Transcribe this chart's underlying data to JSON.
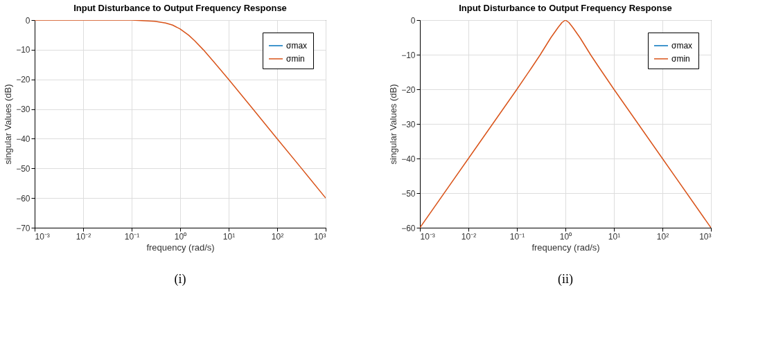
{
  "chart_data": [
    {
      "type": "line",
      "title": "Input Disturbance to Output Frequency Response",
      "xlabel": "frequency (rad/s)",
      "ylabel": "singular Values (dB)",
      "log": "x",
      "x": [
        0.001,
        0.01,
        0.1,
        0.3,
        0.5,
        0.7,
        1,
        1.5,
        2,
        3,
        5,
        10,
        30,
        100,
        300,
        1000
      ],
      "series": [
        {
          "name": "σmax",
          "color": "#0072bd",
          "values": [
            null,
            null,
            null,
            null,
            null,
            null,
            null,
            null,
            null,
            null,
            null,
            null,
            null,
            null,
            null,
            null
          ]
        },
        {
          "name": "σmin",
          "color": "#d95319",
          "values": [
            0,
            0,
            0,
            -0.4,
            -1,
            -1.7,
            -3,
            -5.1,
            -7,
            -10,
            -14.2,
            -20,
            -29.5,
            -40,
            -49.5,
            -60
          ]
        }
      ],
      "xlim": [
        0.001,
        1000
      ],
      "ylim": [
        -70,
        0
      ],
      "xticks": [
        {
          "value": 0.001,
          "label": "10⁻³"
        },
        {
          "value": 0.01,
          "label": "10⁻²"
        },
        {
          "value": 0.1,
          "label": "10⁻¹"
        },
        {
          "value": 1,
          "label": "10⁰"
        },
        {
          "value": 10,
          "label": "10¹"
        },
        {
          "value": 100,
          "label": "10²"
        },
        {
          "value": 1000,
          "label": "10³"
        }
      ],
      "yticks": [
        -70,
        -60,
        -50,
        -40,
        -30,
        -20,
        -10,
        0
      ],
      "grid": true,
      "legend": "top right",
      "annotations": [
        "(i)"
      ]
    },
    {
      "type": "line",
      "title": "Input Disturbance to Output Frequency Response",
      "xlabel": "frequency (rad/s)",
      "ylabel": "singular Values (dB)",
      "log": "x",
      "x": [
        0.001,
        0.01,
        0.1,
        0.2,
        0.3,
        0.5,
        0.7,
        0.85,
        1,
        1.18,
        1.43,
        2,
        3.33,
        5,
        10,
        100,
        1000
      ],
      "series": [
        {
          "name": "σmax",
          "color": "#0072bd",
          "values": [
            null,
            null,
            null,
            null,
            null,
            null,
            null,
            null,
            null,
            null,
            null,
            null,
            null,
            null,
            null,
            null,
            null
          ]
        },
        {
          "name": "σmin",
          "color": "#d95319",
          "values": [
            -60,
            -40,
            -20,
            -13.8,
            -10.1,
            -5.1,
            -2.2,
            -0.7,
            0,
            -0.7,
            -2.2,
            -5.1,
            -10.1,
            -13.8,
            -20,
            -40,
            -60
          ]
        }
      ],
      "xlim": [
        0.001,
        1000
      ],
      "ylim": [
        -60,
        0
      ],
      "xticks": [
        {
          "value": 0.001,
          "label": "10⁻³"
        },
        {
          "value": 0.01,
          "label": "10⁻²"
        },
        {
          "value": 0.1,
          "label": "10⁻¹"
        },
        {
          "value": 1,
          "label": "10⁰"
        },
        {
          "value": 10,
          "label": "10¹"
        },
        {
          "value": 100,
          "label": "10²"
        },
        {
          "value": 1000,
          "label": "10³"
        }
      ],
      "yticks": [
        -60,
        -50,
        -40,
        -30,
        -20,
        -10,
        0
      ],
      "grid": true,
      "legend": "top right",
      "annotations": [
        "(ii)"
      ]
    }
  ]
}
